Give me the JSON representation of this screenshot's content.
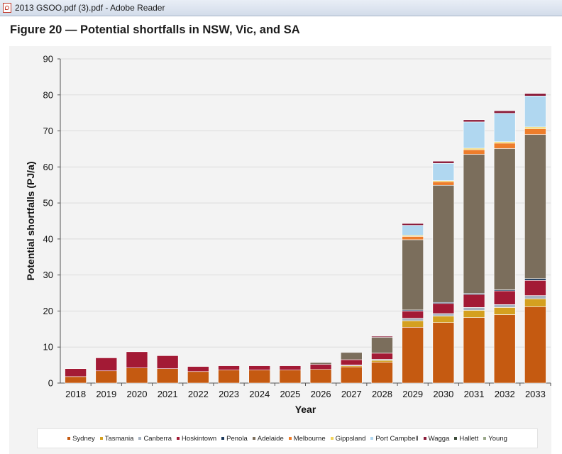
{
  "window": {
    "title": "2013 GSOO.pdf (3).pdf - Adobe Reader",
    "icon": "pdf-file-icon"
  },
  "figure_title": "Figure 20 — Potential shortfalls in NSW, Vic, and SA",
  "colors": {
    "Sydney": "#c55a11",
    "Tasmania": "#d4a020",
    "Canberra": "#a8b4c2",
    "Hoskintown": "#a31a35",
    "Penola": "#1d3a5c",
    "Adelaide": "#7b6e5c",
    "Melbourne": "#ee7d2b",
    "Gippsland": "#f2d45c",
    "Port Campbell": "#b0d7f0",
    "Wagga": "#8b1c3a",
    "Hallett": "#3d4c3a",
    "Young": "#9aa88a"
  },
  "chart_data": {
    "type": "bar",
    "stacked": true,
    "title": "",
    "xlabel": "Year",
    "ylabel": "Potential shortfalls (PJ/a)",
    "ylim": [
      0,
      90
    ],
    "yticks": [
      0,
      10,
      20,
      30,
      40,
      50,
      60,
      70,
      80,
      90
    ],
    "grid": true,
    "legend_position": "bottom",
    "categories": [
      "2018",
      "2019",
      "2020",
      "2021",
      "2022",
      "2023",
      "2024",
      "2025",
      "2026",
      "2027",
      "2028",
      "2029",
      "2030",
      "2031",
      "2032",
      "2033"
    ],
    "series": [
      {
        "name": "Sydney",
        "values": [
          1.8,
          3.4,
          4.2,
          4.0,
          3.2,
          3.6,
          3.6,
          3.6,
          3.8,
          4.5,
          5.8,
          15.5,
          16.8,
          18.2,
          19.0,
          21.2
        ]
      },
      {
        "name": "Tasmania",
        "values": [
          0,
          0,
          0,
          0,
          0,
          0,
          0,
          0,
          0,
          0.3,
          0.5,
          1.8,
          1.8,
          2.0,
          2.0,
          2.2
        ]
      },
      {
        "name": "Canberra",
        "values": [
          0,
          0,
          0,
          0,
          0,
          0,
          0,
          0,
          0,
          0.2,
          0.3,
          0.7,
          0.7,
          0.8,
          0.8,
          0.9
        ]
      },
      {
        "name": "Hoskintown",
        "values": [
          2.2,
          3.6,
          4.5,
          3.6,
          1.4,
          1.2,
          1.2,
          1.2,
          1.4,
          1.5,
          1.7,
          2.0,
          2.8,
          3.6,
          3.8,
          4.2
        ]
      },
      {
        "name": "Penola",
        "values": [
          0,
          0,
          0,
          0,
          0,
          0,
          0,
          0,
          0,
          0,
          0,
          0.3,
          0.3,
          0.3,
          0.3,
          0.5
        ]
      },
      {
        "name": "Adelaide",
        "values": [
          0,
          0,
          0,
          0,
          0,
          0,
          0,
          0,
          0.5,
          2.0,
          4.4,
          19.5,
          32.5,
          38.6,
          39.2,
          40.0
        ]
      },
      {
        "name": "Melbourne",
        "values": [
          0,
          0,
          0,
          0,
          0,
          0,
          0,
          0,
          0,
          0,
          0,
          0.9,
          1.0,
          1.3,
          1.5,
          1.6
        ]
      },
      {
        "name": "Gippsland",
        "values": [
          0,
          0,
          0,
          0,
          0,
          0,
          0,
          0,
          0,
          0,
          0,
          0.3,
          0.3,
          0.4,
          0.4,
          0.5
        ]
      },
      {
        "name": "Port Campbell",
        "values": [
          0,
          0,
          0,
          0,
          0,
          0,
          0,
          0,
          0,
          0,
          0,
          2.8,
          4.8,
          7.3,
          7.9,
          8.6
        ]
      },
      {
        "name": "Wagga",
        "values": [
          0,
          0,
          0,
          0,
          0,
          0,
          0,
          0,
          0,
          0,
          0.3,
          0.5,
          0.6,
          0.6,
          0.7,
          0.7
        ]
      },
      {
        "name": "Hallett",
        "values": [
          0,
          0,
          0,
          0,
          0,
          0,
          0,
          0,
          0,
          0,
          0,
          0,
          0,
          0,
          0,
          0
        ]
      },
      {
        "name": "Young",
        "values": [
          0,
          0,
          0,
          0,
          0,
          0,
          0,
          0,
          0,
          0,
          0,
          0,
          0,
          0,
          0,
          0
        ]
      }
    ]
  }
}
